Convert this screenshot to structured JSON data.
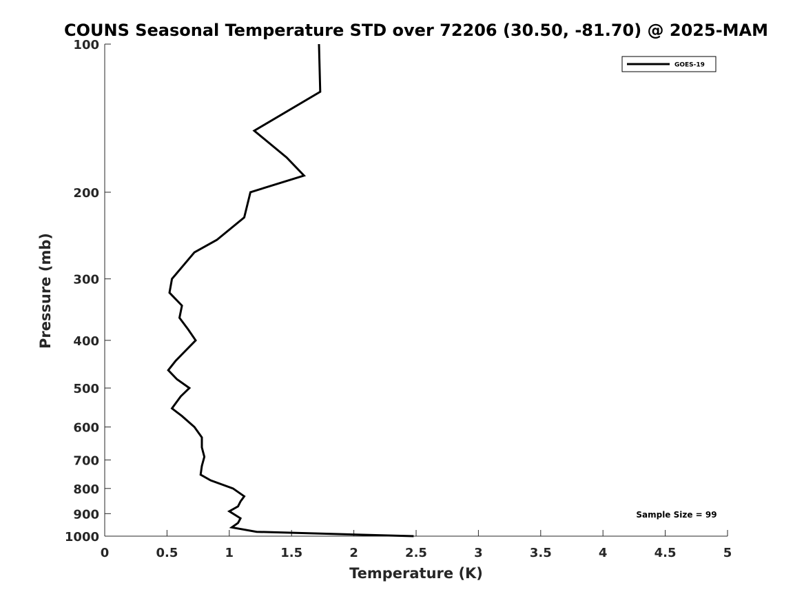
{
  "chart_data": {
    "type": "line",
    "title": "COUNS Seasonal Temperature STD over 72206 (30.50, -81.70) @ 2025-MAM",
    "xlabel": "Temperature (K)",
    "ylabel": "Pressure (mb)",
    "xlim": [
      0,
      5
    ],
    "ylim": [
      1000,
      100
    ],
    "y_scale": "log",
    "y_reversed": true,
    "x_ticks": [
      "0",
      "0.5",
      "1",
      "1.5",
      "2",
      "2.5",
      "3",
      "3.5",
      "4",
      "4.5",
      "5"
    ],
    "x_tick_values": [
      0,
      0.5,
      1,
      1.5,
      2,
      2.5,
      3,
      3.5,
      4,
      4.5,
      5
    ],
    "y_ticks": [
      "100",
      "200",
      "300",
      "400",
      "500",
      "600",
      "700",
      "800",
      "900",
      "1000"
    ],
    "y_tick_values": [
      100,
      200,
      300,
      400,
      500,
      600,
      700,
      800,
      900,
      1000
    ],
    "grid": false,
    "legend_position": "top-right",
    "annotation": "Sample Size = 99",
    "series": [
      {
        "name": "GOES-19",
        "color": "#000000",
        "points": [
          [
            1.72,
            100
          ],
          [
            1.73,
            125
          ],
          [
            1.2,
            150
          ],
          [
            1.46,
            170
          ],
          [
            1.6,
            185
          ],
          [
            1.17,
            200
          ],
          [
            1.12,
            225
          ],
          [
            0.9,
            250
          ],
          [
            0.72,
            265
          ],
          [
            0.64,
            280
          ],
          [
            0.54,
            300
          ],
          [
            0.52,
            320
          ],
          [
            0.62,
            340
          ],
          [
            0.6,
            360
          ],
          [
            0.67,
            380
          ],
          [
            0.73,
            400
          ],
          [
            0.57,
            440
          ],
          [
            0.51,
            460
          ],
          [
            0.58,
            480
          ],
          [
            0.68,
            500
          ],
          [
            0.61,
            520
          ],
          [
            0.54,
            550
          ],
          [
            0.62,
            570
          ],
          [
            0.72,
            600
          ],
          [
            0.78,
            630
          ],
          [
            0.78,
            660
          ],
          [
            0.8,
            690
          ],
          [
            0.78,
            720
          ],
          [
            0.77,
            750
          ],
          [
            0.85,
            770
          ],
          [
            1.03,
            800
          ],
          [
            1.12,
            830
          ],
          [
            1.09,
            850
          ],
          [
            1.07,
            870
          ],
          [
            1.0,
            890
          ],
          [
            1.09,
            920
          ],
          [
            1.07,
            940
          ],
          [
            1.02,
            960
          ],
          [
            1.22,
            980
          ],
          [
            2.48,
            1000
          ]
        ]
      }
    ]
  }
}
